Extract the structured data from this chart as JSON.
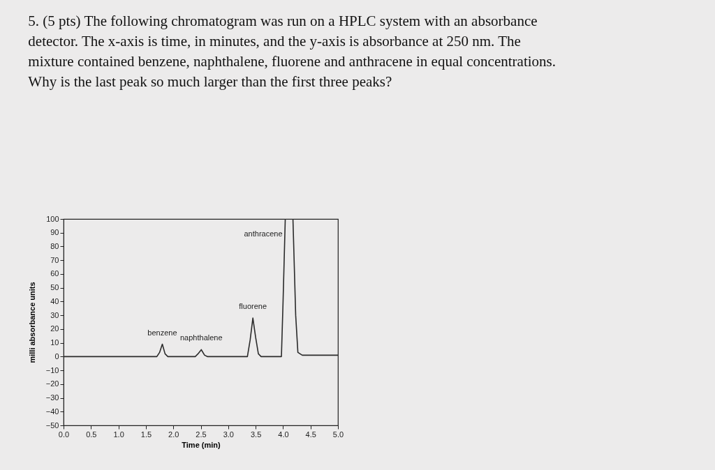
{
  "chart_data": {
    "type": "line",
    "title": "5. (5 pts) The following chromatogram was run on a HPLC system with an absorbance detector. The x-axis is time, in minutes, and the y-axis is absorbance at 250 nm. The mixture contained benzene, naphthalene, fluorene and anthracene in equal concentrations. Why is the last peak so much larger than the first three peaks?",
    "xlabel": "Time (min)",
    "ylabel": "milli absorbance units",
    "x": [
      0,
      1.7,
      1.75,
      1.8,
      1.85,
      1.9,
      2.4,
      2.45,
      2.51,
      2.57,
      2.62,
      3.35,
      3.4,
      3.45,
      3.5,
      3.55,
      3.6,
      3.97,
      4.0,
      4.04,
      4.18,
      4.23,
      4.27,
      4.35,
      5.0
    ],
    "series": [
      {
        "color": "#2b2b2b",
        "values": [
          0,
          0,
          3,
          9,
          2,
          0,
          0,
          2,
          5,
          1,
          0,
          0,
          12,
          28,
          14,
          2,
          0,
          0,
          40,
          100,
          100,
          30,
          3,
          1,
          1
        ]
      }
    ],
    "xlim": [
      0,
      5
    ],
    "ylim": [
      -50,
      100
    ],
    "xticks": [
      {
        "value": 0,
        "label": "0.0"
      },
      0.5,
      {
        "value": 1,
        "label": "1.0"
      },
      1.5,
      {
        "value": 2,
        "label": "2.0"
      },
      2.5,
      {
        "value": 3,
        "label": "3.0"
      },
      3.5,
      {
        "value": 4,
        "label": "4.0"
      },
      4.5,
      {
        "value": 5,
        "label": "5.0"
      }
    ],
    "yticks": [
      100,
      90,
      80,
      70,
      60,
      50,
      40,
      30,
      20,
      10,
      0,
      -10,
      -20,
      -30,
      -40,
      -50
    ],
    "grid": false,
    "annotations": [
      {
        "text": "benzene",
        "x": 1.8,
        "y": 9
      },
      {
        "text": "naphthalene",
        "x": 2.51,
        "y": 5
      },
      {
        "text": "fluorene",
        "x": 3.45,
        "y": 28
      },
      {
        "text": "anthracene",
        "x": 4.04,
        "y": 100
      }
    ]
  }
}
